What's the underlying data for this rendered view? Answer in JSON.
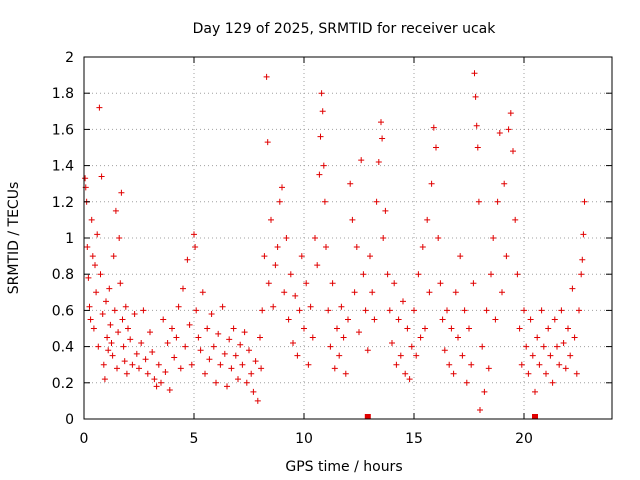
{
  "chart_data": {
    "type": "scatter",
    "title": "Day 129 of 2025, SRMTID for receiver ucak",
    "xlabel": "GPS time / hours",
    "ylabel": "SRMTID / TECUs",
    "xlim": [
      0,
      24
    ],
    "ylim": [
      0,
      2
    ],
    "x_ticks": [
      0,
      5,
      10,
      15,
      20
    ],
    "x_tick_labels": [
      "0",
      "5",
      "10",
      "15",
      "20"
    ],
    "y_ticks": [
      0,
      0.2,
      0.4,
      0.6,
      0.8,
      1,
      1.2,
      1.4,
      1.6,
      1.8,
      2
    ],
    "y_tick_labels": [
      "0",
      "0.2",
      "0.4",
      "0.6",
      "0.8",
      "1",
      "1.2",
      "1.4",
      "1.6",
      "1.8",
      "2"
    ],
    "grid": true,
    "marker": "+",
    "color": "#e00000",
    "time_markers": [
      12.9,
      20.5
    ],
    "series": [
      {
        "name": "SRMTID",
        "points": [
          [
            0.05,
            1.33
          ],
          [
            0.08,
            1.28
          ],
          [
            0.12,
            1.2
          ],
          [
            0.15,
            0.95
          ],
          [
            0.2,
            0.78
          ],
          [
            0.25,
            0.62
          ],
          [
            0.3,
            0.55
          ],
          [
            0.35,
            1.1
          ],
          [
            0.4,
            0.9
          ],
          [
            0.45,
            0.5
          ],
          [
            0.5,
            0.85
          ],
          [
            0.55,
            0.7
          ],
          [
            0.6,
            1.02
          ],
          [
            0.65,
            0.4
          ],
          [
            0.7,
            1.72
          ],
          [
            0.75,
            0.8
          ],
          [
            0.8,
            1.34
          ],
          [
            0.85,
            0.58
          ],
          [
            0.9,
            0.3
          ],
          [
            0.95,
            0.22
          ],
          [
            1.0,
            0.65
          ],
          [
            1.05,
            0.45
          ],
          [
            1.1,
            0.38
          ],
          [
            1.15,
            0.72
          ],
          [
            1.2,
            0.52
          ],
          [
            1.25,
            0.42
          ],
          [
            1.3,
            0.35
          ],
          [
            1.35,
            0.9
          ],
          [
            1.4,
            0.6
          ],
          [
            1.45,
            1.15
          ],
          [
            1.5,
            0.28
          ],
          [
            1.55,
            0.48
          ],
          [
            1.6,
            1.0
          ],
          [
            1.65,
            0.75
          ],
          [
            1.7,
            1.25
          ],
          [
            1.75,
            0.55
          ],
          [
            1.8,
            0.4
          ],
          [
            1.85,
            0.32
          ],
          [
            1.9,
            0.62
          ],
          [
            1.95,
            0.25
          ],
          [
            2.0,
            0.5
          ],
          [
            2.1,
            0.44
          ],
          [
            2.2,
            0.3
          ],
          [
            2.3,
            0.58
          ],
          [
            2.4,
            0.36
          ],
          [
            2.5,
            0.28
          ],
          [
            2.6,
            0.42
          ],
          [
            2.7,
            0.6
          ],
          [
            2.8,
            0.33
          ],
          [
            2.9,
            0.25
          ],
          [
            3.0,
            0.48
          ],
          [
            3.1,
            0.37
          ],
          [
            3.2,
            0.22
          ],
          [
            3.3,
            0.18
          ],
          [
            3.4,
            0.3
          ],
          [
            3.5,
            0.2
          ],
          [
            3.6,
            0.55
          ],
          [
            3.7,
            0.26
          ],
          [
            3.8,
            0.42
          ],
          [
            3.9,
            0.16
          ],
          [
            4.0,
            0.5
          ],
          [
            4.1,
            0.34
          ],
          [
            4.2,
            0.45
          ],
          [
            4.3,
            0.62
          ],
          [
            4.4,
            0.28
          ],
          [
            4.5,
            0.72
          ],
          [
            4.6,
            0.4
          ],
          [
            4.7,
            0.88
          ],
          [
            4.8,
            0.52
          ],
          [
            4.9,
            0.3
          ],
          [
            5.0,
            1.02
          ],
          [
            5.05,
            0.95
          ],
          [
            5.1,
            0.6
          ],
          [
            5.2,
            0.45
          ],
          [
            5.3,
            0.38
          ],
          [
            5.4,
            0.7
          ],
          [
            5.5,
            0.25
          ],
          [
            5.6,
            0.5
          ],
          [
            5.7,
            0.33
          ],
          [
            5.8,
            0.58
          ],
          [
            5.9,
            0.4
          ],
          [
            6.0,
            0.2
          ],
          [
            6.1,
            0.47
          ],
          [
            6.2,
            0.3
          ],
          [
            6.3,
            0.62
          ],
          [
            6.4,
            0.36
          ],
          [
            6.5,
            0.18
          ],
          [
            6.6,
            0.44
          ],
          [
            6.7,
            0.28
          ],
          [
            6.8,
            0.5
          ],
          [
            6.9,
            0.35
          ],
          [
            7.0,
            0.22
          ],
          [
            7.1,
            0.41
          ],
          [
            7.2,
            0.3
          ],
          [
            7.3,
            0.48
          ],
          [
            7.4,
            0.2
          ],
          [
            7.5,
            0.38
          ],
          [
            7.6,
            0.25
          ],
          [
            7.7,
            0.15
          ],
          [
            7.8,
            0.32
          ],
          [
            7.9,
            0.1
          ],
          [
            8.0,
            0.45
          ],
          [
            8.05,
            0.28
          ],
          [
            8.1,
            0.6
          ],
          [
            8.2,
            0.9
          ],
          [
            8.3,
            1.89
          ],
          [
            8.35,
            1.53
          ],
          [
            8.4,
            0.75
          ],
          [
            8.5,
            1.1
          ],
          [
            8.6,
            0.62
          ],
          [
            8.7,
            0.85
          ],
          [
            8.8,
            0.95
          ],
          [
            8.9,
            1.2
          ],
          [
            9.0,
            1.28
          ],
          [
            9.1,
            0.7
          ],
          [
            9.2,
            1.0
          ],
          [
            9.3,
            0.55
          ],
          [
            9.4,
            0.8
          ],
          [
            9.5,
            0.42
          ],
          [
            9.6,
            0.68
          ],
          [
            9.7,
            0.35
          ],
          [
            9.8,
            0.6
          ],
          [
            9.9,
            0.9
          ],
          [
            10.0,
            0.5
          ],
          [
            10.1,
            0.75
          ],
          [
            10.2,
            0.3
          ],
          [
            10.3,
            0.62
          ],
          [
            10.4,
            0.45
          ],
          [
            10.5,
            1.0
          ],
          [
            10.6,
            0.85
          ],
          [
            10.7,
            1.35
          ],
          [
            10.75,
            1.56
          ],
          [
            10.8,
            1.8
          ],
          [
            10.85,
            1.7
          ],
          [
            10.9,
            1.4
          ],
          [
            10.95,
            1.2
          ],
          [
            11.0,
            0.95
          ],
          [
            11.1,
            0.6
          ],
          [
            11.2,
            0.4
          ],
          [
            11.3,
            0.75
          ],
          [
            11.4,
            0.28
          ],
          [
            11.5,
            0.5
          ],
          [
            11.6,
            0.35
          ],
          [
            11.7,
            0.62
          ],
          [
            11.8,
            0.45
          ],
          [
            11.9,
            0.25
          ],
          [
            12.0,
            0.55
          ],
          [
            12.1,
            1.3
          ],
          [
            12.2,
            1.1
          ],
          [
            12.3,
            0.7
          ],
          [
            12.4,
            0.95
          ],
          [
            12.5,
            0.48
          ],
          [
            12.6,
            1.43
          ],
          [
            12.7,
            0.8
          ],
          [
            12.8,
            0.6
          ],
          [
            12.9,
            0.38
          ],
          [
            13.0,
            0.9
          ],
          [
            13.1,
            0.7
          ],
          [
            13.2,
            0.55
          ],
          [
            13.3,
            1.2
          ],
          [
            13.4,
            1.42
          ],
          [
            13.5,
            1.64
          ],
          [
            13.55,
            1.55
          ],
          [
            13.6,
            1.0
          ],
          [
            13.7,
            1.15
          ],
          [
            13.8,
            0.8
          ],
          [
            13.9,
            0.6
          ],
          [
            14.0,
            0.42
          ],
          [
            14.1,
            0.75
          ],
          [
            14.2,
            0.3
          ],
          [
            14.3,
            0.55
          ],
          [
            14.4,
            0.35
          ],
          [
            14.5,
            0.65
          ],
          [
            14.6,
            0.25
          ],
          [
            14.7,
            0.5
          ],
          [
            14.8,
            0.22
          ],
          [
            14.9,
            0.4
          ],
          [
            15.0,
            0.6
          ],
          [
            15.1,
            0.35
          ],
          [
            15.2,
            0.8
          ],
          [
            15.3,
            0.45
          ],
          [
            15.4,
            0.95
          ],
          [
            15.5,
            0.5
          ],
          [
            15.6,
            1.1
          ],
          [
            15.7,
            0.7
          ],
          [
            15.8,
            1.3
          ],
          [
            15.9,
            1.61
          ],
          [
            16.0,
            1.5
          ],
          [
            16.1,
            1.0
          ],
          [
            16.2,
            0.75
          ],
          [
            16.3,
            0.55
          ],
          [
            16.4,
            0.38
          ],
          [
            16.5,
            0.6
          ],
          [
            16.6,
            0.3
          ],
          [
            16.7,
            0.5
          ],
          [
            16.8,
            0.25
          ],
          [
            16.9,
            0.7
          ],
          [
            17.0,
            0.45
          ],
          [
            17.1,
            0.9
          ],
          [
            17.2,
            0.35
          ],
          [
            17.3,
            0.6
          ],
          [
            17.4,
            0.2
          ],
          [
            17.5,
            0.5
          ],
          [
            17.6,
            0.3
          ],
          [
            17.7,
            0.75
          ],
          [
            17.75,
            1.91
          ],
          [
            17.8,
            1.78
          ],
          [
            17.85,
            1.62
          ],
          [
            17.9,
            1.5
          ],
          [
            17.95,
            1.2
          ],
          [
            18.0,
            0.05
          ],
          [
            18.1,
            0.4
          ],
          [
            18.2,
            0.15
          ],
          [
            18.3,
            0.6
          ],
          [
            18.4,
            0.28
          ],
          [
            18.5,
            0.8
          ],
          [
            18.6,
            1.0
          ],
          [
            18.7,
            0.55
          ],
          [
            18.8,
            1.2
          ],
          [
            18.9,
            1.58
          ],
          [
            19.0,
            0.7
          ],
          [
            19.1,
            1.3
          ],
          [
            19.2,
            0.9
          ],
          [
            19.3,
            1.6
          ],
          [
            19.4,
            1.69
          ],
          [
            19.5,
            1.48
          ],
          [
            19.6,
            1.1
          ],
          [
            19.7,
            0.8
          ],
          [
            19.8,
            0.5
          ],
          [
            19.9,
            0.3
          ],
          [
            20.0,
            0.6
          ],
          [
            20.1,
            0.4
          ],
          [
            20.2,
            0.25
          ],
          [
            20.3,
            0.55
          ],
          [
            20.4,
            0.35
          ],
          [
            20.5,
            0.15
          ],
          [
            20.6,
            0.45
          ],
          [
            20.7,
            0.3
          ],
          [
            20.8,
            0.6
          ],
          [
            20.9,
            0.4
          ],
          [
            21.0,
            0.25
          ],
          [
            21.1,
            0.5
          ],
          [
            21.2,
            0.35
          ],
          [
            21.3,
            0.2
          ],
          [
            21.4,
            0.55
          ],
          [
            21.5,
            0.4
          ],
          [
            21.6,
            0.3
          ],
          [
            21.7,
            0.6
          ],
          [
            21.8,
            0.42
          ],
          [
            21.9,
            0.28
          ],
          [
            22.0,
            0.5
          ],
          [
            22.1,
            0.35
          ],
          [
            22.2,
            0.72
          ],
          [
            22.3,
            0.45
          ],
          [
            22.4,
            0.25
          ],
          [
            22.5,
            0.6
          ],
          [
            22.6,
            0.8
          ],
          [
            22.65,
            0.88
          ],
          [
            22.7,
            1.02
          ],
          [
            22.75,
            1.2
          ]
        ]
      }
    ]
  }
}
